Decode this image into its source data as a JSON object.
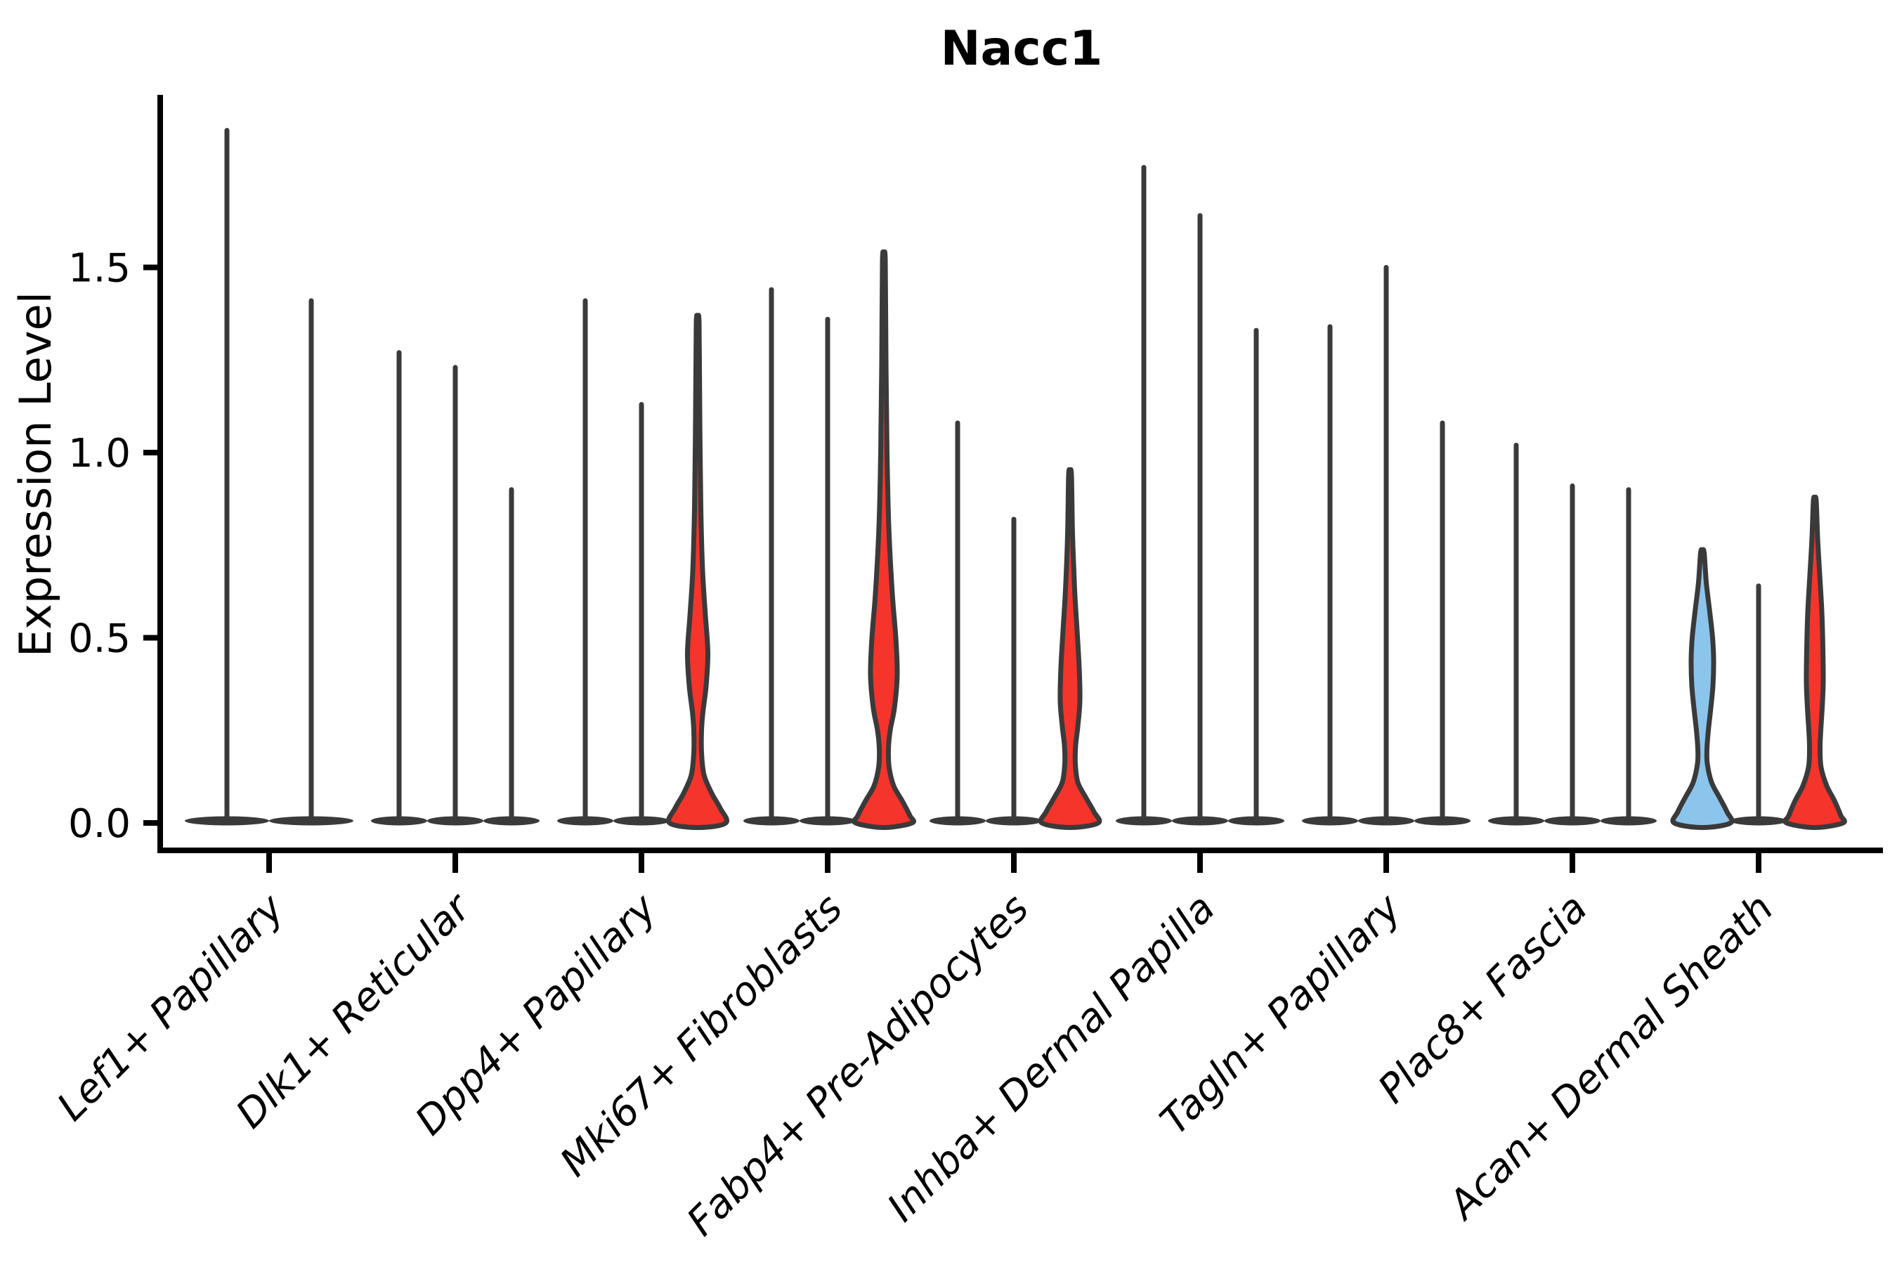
{
  "figure": {
    "title": "Nacc1",
    "background": "#ffffff"
  },
  "chart_data": {
    "type": "violin",
    "title": "Nacc1",
    "xlabel": "",
    "ylabel": "Expression Level",
    "yticks": [
      "0.0",
      "0.5",
      "1.0",
      "1.5"
    ],
    "ytick_values": [
      0.0,
      0.5,
      1.0,
      1.5
    ],
    "ylim": [
      0,
      1.95
    ],
    "grid": false,
    "legend": null,
    "x_label_rotation_deg": 45,
    "categories": [
      "Lef1+ Papillary",
      "Dlk1+ Reticular",
      "Dpp4+ Papillary",
      "Mki67+ Fibroblasts",
      "Fabp4+ Pre-Adipocytes",
      "Inhba+ Dermal Papilla",
      "Tagln+ Papillary",
      "Plac8+ Fascia",
      "Acan+ Dermal Sheath"
    ],
    "colors": {
      "spike": "#3a3a3a",
      "outline": "#3a3a3a",
      "red": "#f5342b",
      "blue": "#8cc5ec",
      "axis": "#000000"
    },
    "groups": [
      {
        "category": "Lef1+ Papillary",
        "violins": [
          {
            "max": 1.87,
            "style": "spike",
            "fill": "spike"
          },
          {
            "max": 1.41,
            "style": "spike",
            "fill": "spike"
          }
        ]
      },
      {
        "category": "Dlk1+ Reticular",
        "violins": [
          {
            "max": 1.27,
            "style": "spike",
            "fill": "spike"
          },
          {
            "max": 1.23,
            "style": "spike",
            "fill": "spike"
          },
          {
            "max": 0.9,
            "style": "spike",
            "fill": "spike"
          }
        ]
      },
      {
        "category": "Dpp4+ Papillary",
        "violins": [
          {
            "max": 1.41,
            "style": "spike",
            "fill": "spike"
          },
          {
            "max": 1.13,
            "style": "spike",
            "fill": "spike"
          },
          {
            "max": 1.35,
            "style": "filled",
            "fill": "red",
            "profile": [
              [
                1.35,
                2
              ],
              [
                1.1,
                3
              ],
              [
                0.85,
                4.5
              ],
              [
                0.68,
                7
              ],
              [
                0.56,
                11
              ],
              [
                0.46,
                14.5
              ],
              [
                0.37,
                12
              ],
              [
                0.3,
                7.5
              ],
              [
                0.25,
                5.5
              ],
              [
                0.19,
                5.5
              ],
              [
                0.13,
                9
              ],
              [
                0.08,
                20
              ],
              [
                0.04,
                32
              ],
              [
                0.0,
                40
              ]
            ]
          }
        ]
      },
      {
        "category": "Mki67+ Fibroblasts",
        "violins": [
          {
            "max": 1.44,
            "style": "spike",
            "fill": "spike"
          },
          {
            "max": 1.36,
            "style": "spike",
            "fill": "spike"
          },
          {
            "max": 1.52,
            "style": "filled",
            "fill": "red",
            "profile": [
              [
                1.52,
                2
              ],
              [
                1.25,
                3
              ],
              [
                1.0,
                4.5
              ],
              [
                0.8,
                7
              ],
              [
                0.62,
                12
              ],
              [
                0.5,
                17
              ],
              [
                0.4,
                19
              ],
              [
                0.31,
                15
              ],
              [
                0.25,
                9
              ],
              [
                0.2,
                6.5
              ],
              [
                0.15,
                7.5
              ],
              [
                0.1,
                14
              ],
              [
                0.06,
                26
              ],
              [
                0.02,
                37
              ],
              [
                0.0,
                40
              ]
            ]
          }
        ]
      },
      {
        "category": "Fabp4+ Pre-Adipocytes",
        "violins": [
          {
            "max": 1.08,
            "style": "spike",
            "fill": "spike"
          },
          {
            "max": 0.82,
            "style": "spike",
            "fill": "spike"
          },
          {
            "max": 0.94,
            "style": "filled",
            "fill": "red",
            "profile": [
              [
                0.94,
                2
              ],
              [
                0.78,
                3.5
              ],
              [
                0.63,
                6.5
              ],
              [
                0.52,
                10
              ],
              [
                0.42,
                13
              ],
              [
                0.33,
                14
              ],
              [
                0.26,
                11
              ],
              [
                0.21,
                8
              ],
              [
                0.16,
                7.5
              ],
              [
                0.11,
                11
              ],
              [
                0.07,
                22
              ],
              [
                0.03,
                34
              ],
              [
                0.0,
                40
              ]
            ]
          }
        ]
      },
      {
        "category": "Inhba+ Dermal Papilla",
        "violins": [
          {
            "max": 1.77,
            "style": "spike",
            "fill": "spike"
          },
          {
            "max": 1.64,
            "style": "spike",
            "fill": "spike"
          },
          {
            "max": 1.33,
            "style": "spike",
            "fill": "spike"
          }
        ]
      },
      {
        "category": "Tagln+ Papillary",
        "violins": [
          {
            "max": 1.34,
            "style": "spike",
            "fill": "spike"
          },
          {
            "max": 1.5,
            "style": "spike",
            "fill": "spike"
          },
          {
            "max": 1.08,
            "style": "spike",
            "fill": "spike"
          }
        ]
      },
      {
        "category": "Plac8+ Fascia",
        "violins": [
          {
            "max": 1.02,
            "style": "spike",
            "fill": "spike"
          },
          {
            "max": 0.91,
            "style": "spike",
            "fill": "spike"
          },
          {
            "max": 0.9,
            "style": "spike",
            "fill": "spike"
          }
        ]
      },
      {
        "category": "Acan+ Dermal Sheath",
        "violins": [
          {
            "max": 0.73,
            "style": "filled",
            "fill": "blue",
            "profile": [
              [
                0.73,
                2.5
              ],
              [
                0.65,
                5.5
              ],
              [
                0.57,
                10.5
              ],
              [
                0.5,
                14.5
              ],
              [
                0.44,
                16
              ],
              [
                0.37,
                15
              ],
              [
                0.31,
                12
              ],
              [
                0.25,
                8.5
              ],
              [
                0.2,
                6.5
              ],
              [
                0.16,
                7
              ],
              [
                0.11,
                13
              ],
              [
                0.07,
                24
              ],
              [
                0.03,
                35
              ],
              [
                0.0,
                40
              ]
            ]
          },
          {
            "max": 0.64,
            "style": "spike",
            "fill": "spike"
          },
          {
            "max": 0.87,
            "style": "filled",
            "fill": "red",
            "profile": [
              [
                0.87,
                2
              ],
              [
                0.77,
                4
              ],
              [
                0.67,
                7
              ],
              [
                0.57,
                10
              ],
              [
                0.47,
                11.5
              ],
              [
                0.38,
                12
              ],
              [
                0.31,
                10.5
              ],
              [
                0.25,
                8.5
              ],
              [
                0.2,
                7.5
              ],
              [
                0.15,
                9
              ],
              [
                0.1,
                17
              ],
              [
                0.06,
                28
              ],
              [
                0.02,
                37
              ],
              [
                0.0,
                40
              ]
            ]
          }
        ]
      }
    ]
  }
}
